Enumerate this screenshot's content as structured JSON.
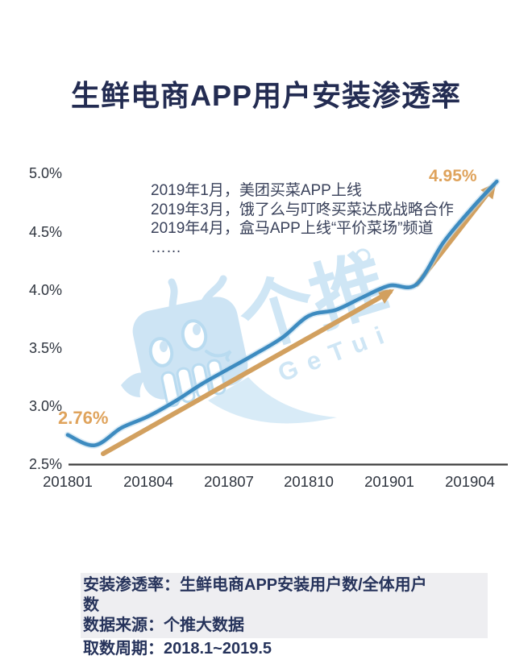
{
  "title": "生鲜电商APP用户安装渗透率",
  "watermark": {
    "cn": "个推",
    "en": "GeTui"
  },
  "chart_data": {
    "type": "line",
    "title": "生鲜电商APP用户安装渗透率",
    "x": [
      "2018-01",
      "2018-02",
      "2018-03",
      "2018-04",
      "2018-05",
      "2018-06",
      "2018-07",
      "2018-08",
      "2018-09",
      "2018-10",
      "2018-11",
      "2018-12",
      "2019-01",
      "2019-02",
      "2019-03",
      "2019-04",
      "2019-05"
    ],
    "values": [
      2.76,
      2.67,
      2.82,
      2.92,
      3.05,
      3.2,
      3.33,
      3.46,
      3.6,
      3.79,
      3.84,
      3.95,
      4.05,
      4.06,
      4.42,
      4.7,
      4.95
    ],
    "unit": "%",
    "ylim": [
      2.5,
      5.0
    ],
    "y_tick_labels": [
      "5.0%",
      "4.5%",
      "4.0%",
      "3.5%",
      "3.0%",
      "2.5%"
    ],
    "x_tick_labels": [
      "201801",
      "201804",
      "201807",
      "201810",
      "201901",
      "201904"
    ],
    "start_label": "2.76%",
    "end_label": "4.95%",
    "line_color": "#3d8bc0",
    "line_halo_color": "#b9d9ec",
    "arrow_color": "#d2a05f",
    "value_label_color": "#dfa35c",
    "axis_color": "#3d3d3d",
    "legend_position": "none",
    "grid": false,
    "annotations": [
      "2019年1月，美团买菜APP上线",
      "2019年3月，饿了么与叮咚买菜达成战略合作",
      "2019年4月，盒马APP上线“平价菜场”频道",
      "……"
    ]
  },
  "footer": {
    "box_lines": [
      "安装渗透率：生鲜电商APP安装用户数/全体用户",
      "数",
      "数据来源：个推大数据"
    ],
    "period": "取数周期：2018.1~2019.5"
  }
}
